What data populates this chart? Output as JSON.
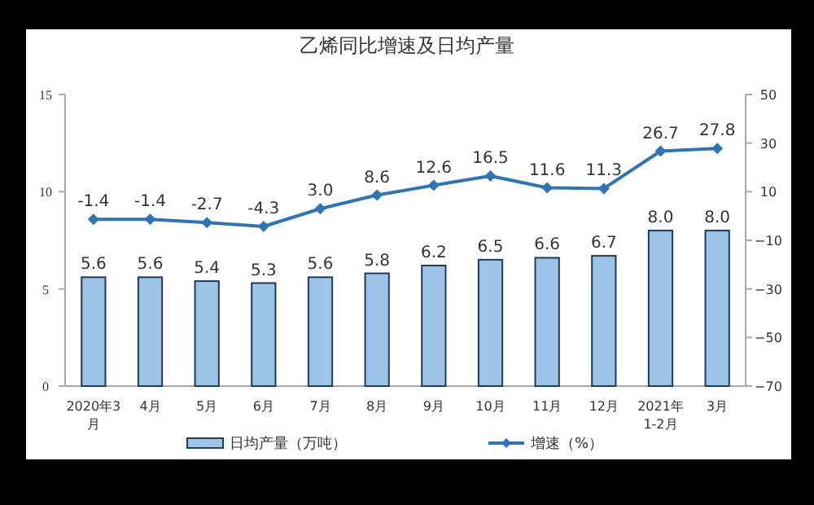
{
  "chart_data": {
    "type": "bar",
    "title": "乙烯同比增速及日均产量",
    "categories": [
      "2020年3月",
      "4月",
      "5月",
      "6月",
      "7月",
      "8月",
      "9月",
      "10月",
      "11月",
      "12月",
      "2021年1-2月",
      "3月"
    ],
    "series": [
      {
        "name": "日均产量（万吨）",
        "color": "#9dc3e6",
        "values": [
          5.6,
          5.6,
          5.4,
          5.3,
          5.6,
          5.8,
          6.2,
          6.5,
          6.6,
          6.7,
          8.0,
          8.0
        ],
        "value_labels": [
          "5.6",
          "5.6",
          "5.4",
          "5.3",
          "5.6",
          "5.8",
          "6.2",
          "6.5",
          "6.6",
          "6.7",
          "8.0",
          "8.0"
        ]
      },
      {
        "name": "增速（%）",
        "type": "line",
        "axis": "y2",
        "color": "#2e75b6",
        "values": [
          -1.4,
          -1.4,
          -2.7,
          -4.3,
          3.0,
          8.6,
          12.6,
          16.5,
          11.6,
          11.3,
          26.7,
          27.8
        ],
        "value_labels": [
          "-1.4",
          "-1.4",
          "-2.7",
          "-4.3",
          "3.0",
          "8.6",
          "12.6",
          "16.5",
          "11.6",
          "11.3",
          "26.7",
          "27.8"
        ]
      }
    ],
    "ylim": [
      0,
      15
    ],
    "yticks": [
      0,
      5,
      10,
      15
    ],
    "y2lim": [
      -70,
      50
    ],
    "y2ticks": [
      -70,
      -50,
      -30,
      -10,
      10,
      30,
      50
    ],
    "legend": "bottom",
    "marker": "diamond",
    "grid": false
  }
}
